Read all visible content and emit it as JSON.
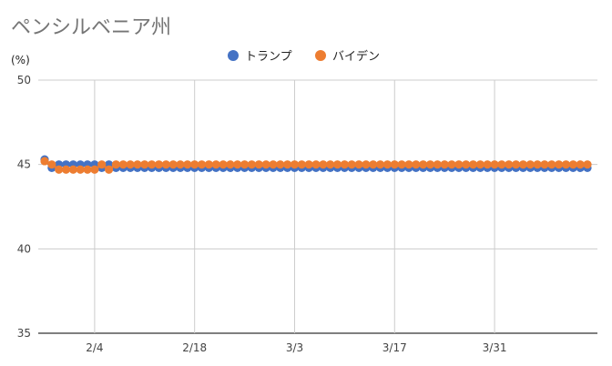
{
  "chart_data": {
    "type": "line",
    "title": "ペンシルベニア州",
    "ylabel": "(%)",
    "xlabel": "",
    "ylim": [
      35,
      50
    ],
    "yticks": [
      35,
      40,
      45,
      50
    ],
    "grid": true,
    "legend": "top-center",
    "x_start": "1/28",
    "x_end": "4/12",
    "xticks": [
      {
        "label": "2/4",
        "day": 7
      },
      {
        "label": "2/18",
        "day": 21
      },
      {
        "label": "3/3",
        "day": 35
      },
      {
        "label": "3/17",
        "day": 49
      },
      {
        "label": "3/31",
        "day": 63
      }
    ],
    "series": [
      {
        "name": "トランプ",
        "color": "#4472C4",
        "values": [
          45.3,
          44.8,
          45.0,
          45.0,
          45.0,
          45.0,
          45.0,
          45.0,
          44.8,
          45.0,
          44.8,
          44.8,
          44.8,
          44.8,
          44.8,
          44.8,
          44.8,
          44.8,
          44.8,
          44.8,
          44.8,
          44.8,
          44.8,
          44.8,
          44.8,
          44.8,
          44.8,
          44.8,
          44.8,
          44.8,
          44.8,
          44.8,
          44.8,
          44.8,
          44.8,
          44.8,
          44.8,
          44.8,
          44.8,
          44.8,
          44.8,
          44.8,
          44.8,
          44.8,
          44.8,
          44.8,
          44.8,
          44.8,
          44.8,
          44.8,
          44.8,
          44.8,
          44.8,
          44.8,
          44.8,
          44.8,
          44.8,
          44.8,
          44.8,
          44.8,
          44.8,
          44.8,
          44.8,
          44.8,
          44.8,
          44.8,
          44.8,
          44.8,
          44.8,
          44.8,
          44.8,
          44.8,
          44.8,
          44.8,
          44.8,
          44.8,
          44.8
        ]
      },
      {
        "name": "バイデン",
        "color": "#ED7D31",
        "values": [
          45.2,
          45.0,
          44.7,
          44.7,
          44.7,
          44.7,
          44.7,
          44.7,
          45.0,
          44.7,
          45.0,
          45.0,
          45.0,
          45.0,
          45.0,
          45.0,
          45.0,
          45.0,
          45.0,
          45.0,
          45.0,
          45.0,
          45.0,
          45.0,
          45.0,
          45.0,
          45.0,
          45.0,
          45.0,
          45.0,
          45.0,
          45.0,
          45.0,
          45.0,
          45.0,
          45.0,
          45.0,
          45.0,
          45.0,
          45.0,
          45.0,
          45.0,
          45.0,
          45.0,
          45.0,
          45.0,
          45.0,
          45.0,
          45.0,
          45.0,
          45.0,
          45.0,
          45.0,
          45.0,
          45.0,
          45.0,
          45.0,
          45.0,
          45.0,
          45.0,
          45.0,
          45.0,
          45.0,
          45.0,
          45.0,
          45.0,
          45.0,
          45.0,
          45.0,
          45.0,
          45.0,
          45.0,
          45.0,
          45.0,
          45.0,
          45.0,
          45.0
        ]
      }
    ]
  }
}
